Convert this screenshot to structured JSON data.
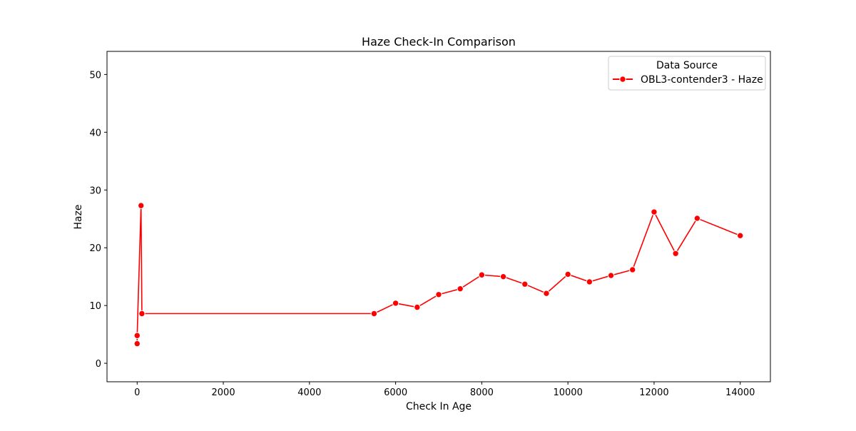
{
  "chart_data": {
    "type": "line",
    "title": "Haze Check-In Comparison",
    "xlabel": "Check In Age",
    "ylabel": "Haze",
    "xlim": [
      -700,
      14700
    ],
    "ylim": [
      -3.2,
      54
    ],
    "xticks": [
      0,
      2000,
      4000,
      6000,
      8000,
      10000,
      12000,
      14000
    ],
    "yticks": [
      0,
      10,
      20,
      30,
      40,
      50
    ],
    "grid": false,
    "legend": {
      "title": "Data Source",
      "placement": "top-right"
    },
    "series": [
      {
        "name": "OBL3-contender3 - Haze",
        "color": "#ff0000",
        "marker": "circle",
        "points": [
          {
            "x": 0,
            "y": 3.4
          },
          {
            "x": 0,
            "y": 4.8
          },
          {
            "x": 90,
            "y": 27.3
          },
          {
            "x": 110,
            "y": 8.6
          },
          {
            "x": 5500,
            "y": 8.6
          },
          {
            "x": 6000,
            "y": 10.4
          },
          {
            "x": 6500,
            "y": 9.7
          },
          {
            "x": 7000,
            "y": 11.9
          },
          {
            "x": 7500,
            "y": 12.9
          },
          {
            "x": 8000,
            "y": 15.3
          },
          {
            "x": 8500,
            "y": 15.0
          },
          {
            "x": 9000,
            "y": 13.7
          },
          {
            "x": 9500,
            "y": 12.1
          },
          {
            "x": 10000,
            "y": 15.4
          },
          {
            "x": 10500,
            "y": 14.1
          },
          {
            "x": 11000,
            "y": 15.2
          },
          {
            "x": 11500,
            "y": 16.2
          },
          {
            "x": 12000,
            "y": 26.2
          },
          {
            "x": 12500,
            "y": 19.0
          },
          {
            "x": 13000,
            "y": 25.1
          },
          {
            "x": 14000,
            "y": 22.1
          }
        ]
      }
    ]
  }
}
